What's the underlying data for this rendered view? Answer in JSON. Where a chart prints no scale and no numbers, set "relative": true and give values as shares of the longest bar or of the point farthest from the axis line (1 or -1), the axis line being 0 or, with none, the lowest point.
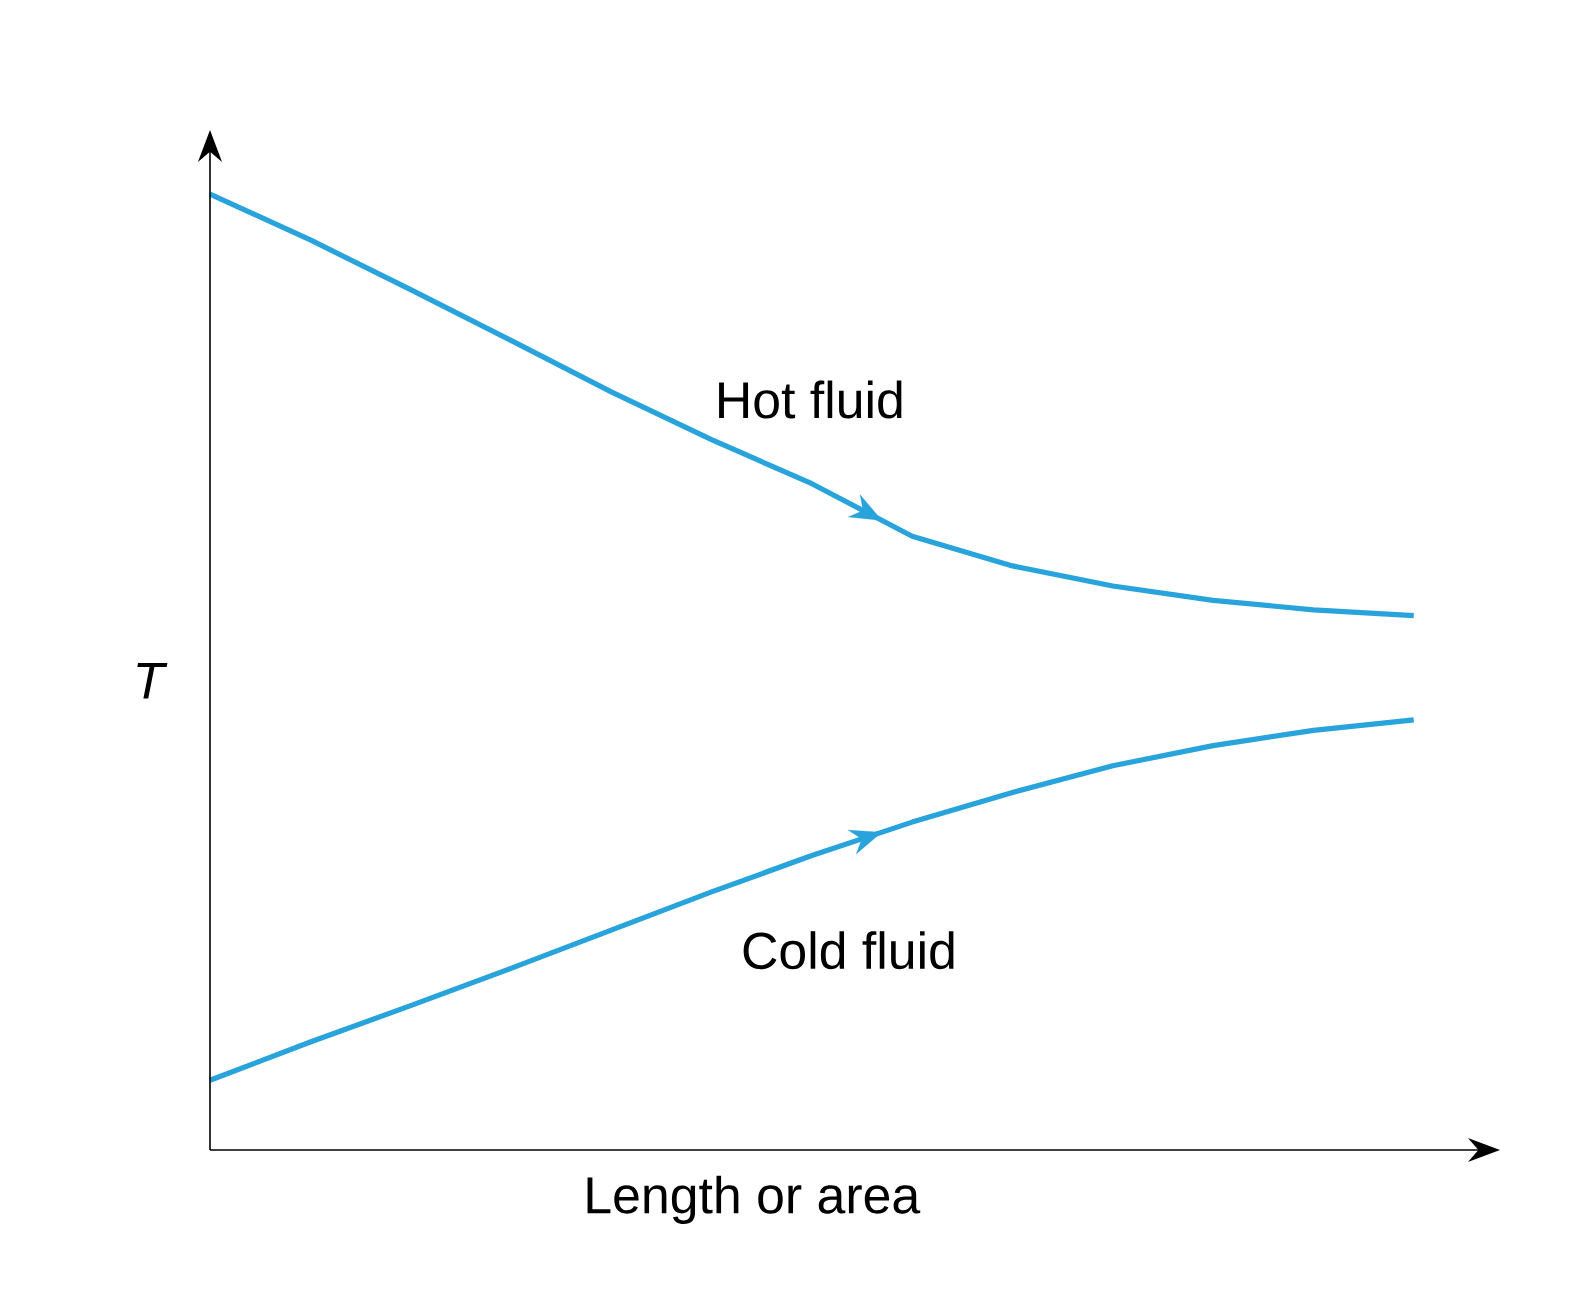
{
  "chart_data": {
    "type": "line",
    "relative": true,
    "xlabel": "Length or area",
    "ylabel": "T",
    "categories": [
      null,
      null,
      null,
      null,
      null,
      null,
      null,
      null,
      null,
      null,
      null,
      null,
      null
    ],
    "series": [
      {
        "name": "Hot fluid",
        "color": "#29a3dc",
        "values": [
          1,
          0.952,
          0.9,
          0.847,
          0.793,
          0.743,
          0.697,
          0.642,
          0.611,
          0.59,
          0.575,
          0.565,
          0.559
        ]
      },
      {
        "name": "Cold fluid",
        "color": "#29a3dc",
        "values": [
          0.073,
          0.113,
          0.151,
          0.19,
          0.23,
          0.27,
          0.308,
          0.343,
          0.374,
          0.402,
          0.423,
          0.439,
          0.45
        ]
      }
    ]
  }
}
